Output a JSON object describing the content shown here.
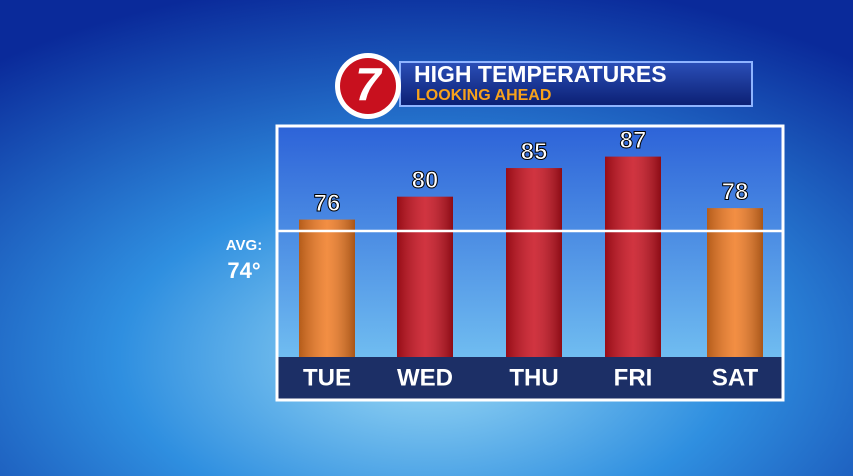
{
  "chart_data": {
    "type": "bar",
    "title": "HIGH TEMPERATURES",
    "subtitle": "LOOKING AHEAD",
    "logo": "7",
    "categories": [
      "TUE",
      "WED",
      "THU",
      "FRI",
      "SAT"
    ],
    "values": [
      76,
      80,
      85,
      87,
      78
    ],
    "colors": [
      "#f07a22",
      "#c8101e",
      "#c8101e",
      "#c8101e",
      "#f07a22"
    ],
    "ylim": [
      52,
      92
    ],
    "average": {
      "label": "AVG:",
      "value": 74,
      "value_label": "74°"
    }
  }
}
